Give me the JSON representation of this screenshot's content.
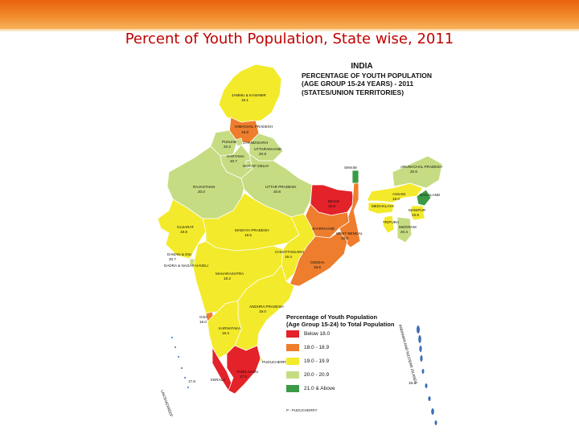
{
  "slide": {
    "title": "Percent of Youth Population, State wise, 2011"
  },
  "map": {
    "title_lines": [
      "INDIA",
      "PERCENTAGE OF YOUTH POPULATION",
      "(AGE GROUP 15-24 YEARS) - 2011",
      "(STATES/UNION TERRITORIES)"
    ],
    "regions": [
      {
        "name": "JAMMU & KASHMIR",
        "value": "19.1",
        "category": "19.0 - 19.9"
      },
      {
        "name": "HIMACHAL PRADESH",
        "value": "18.8",
        "category": "18.0 - 18.9"
      },
      {
        "name": "PUNJAB",
        "value": "20.2",
        "category": "20.0 - 20.9"
      },
      {
        "name": "CHANDIGARH",
        "value": "",
        "category": "20.0 - 20.9"
      },
      {
        "name": "UTTARAKHAND",
        "value": "20.9",
        "category": "20.0 - 20.9"
      },
      {
        "name": "HARYANA",
        "value": "20.7",
        "category": "20.0 - 20.9"
      },
      {
        "name": "NCT OF DELHI",
        "value": "",
        "category": "20.0 - 20.9"
      },
      {
        "name": "RAJASTHAN",
        "value": "20.0",
        "category": "20.0 - 20.9"
      },
      {
        "name": "UTTAR PRADESH",
        "value": "20.8",
        "category": "20.0 - 20.9"
      },
      {
        "name": "BIHAR",
        "value": "16.8",
        "category": "Below 18.0"
      },
      {
        "name": "SIKKIM",
        "value": "",
        "category": "21.0 & Above"
      },
      {
        "name": "ARUNACHAL PRADESH",
        "value": "20.6",
        "category": "20.0 - 20.9"
      },
      {
        "name": "NAGALAND",
        "value": "",
        "category": "21.0 & Above"
      },
      {
        "name": "ASSAM",
        "value": "19.0",
        "category": "19.0 - 19.9"
      },
      {
        "name": "MEGHALAYA",
        "value": "",
        "category": "19.0 - 19.9"
      },
      {
        "name": "MANIPUR",
        "value": "19.8",
        "category": "19.0 - 19.9"
      },
      {
        "name": "TRIPURA",
        "value": "",
        "category": "19.0 - 19.9"
      },
      {
        "name": "MIZORAM",
        "value": "20.4",
        "category": "20.0 - 20.9"
      },
      {
        "name": "GUJARAT",
        "value": "19.8",
        "category": "19.0 - 19.9"
      },
      {
        "name": "MADHYA PRADESH",
        "value": "19.5",
        "category": "19.0 - 19.9"
      },
      {
        "name": "JHARKHAND",
        "value": "",
        "category": "18.0 - 18.9"
      },
      {
        "name": "WEST BENGAL",
        "value": "18.0",
        "category": "18.0 - 18.9"
      },
      {
        "name": "CHHATTISGARH",
        "value": "19.4",
        "category": "19.0 - 19.9"
      },
      {
        "name": "ODISHA",
        "value": "18.6",
        "category": "18.0 - 18.9"
      },
      {
        "name": "DAMAN & DIU",
        "value": "20.7",
        "category": "20.0 - 20.9"
      },
      {
        "name": "DADRA & NAGAR HAVELI",
        "value": "",
        "category": "20.0 - 20.9"
      },
      {
        "name": "MAHARASHTRA",
        "value": "19.2",
        "category": "19.0 - 19.9"
      },
      {
        "name": "ANDHRA PRADESH",
        "value": "19.0",
        "category": "19.0 - 19.9"
      },
      {
        "name": "GOA",
        "value": "18.0",
        "category": "18.0 - 18.9"
      },
      {
        "name": "KARNATAKA",
        "value": "19.4",
        "category": "19.0 - 19.9"
      },
      {
        "name": "PUDUCHERRY",
        "value": "",
        "category": "19.0 - 19.9"
      },
      {
        "name": "TAMIL NADU",
        "value": "17.5",
        "category": "Below 18.0"
      },
      {
        "name": "KERALA",
        "value": "",
        "category": "Below 18.0"
      },
      {
        "name": "LAKSHADWEEP",
        "value": "17.8",
        "category": "Below 18.0"
      },
      {
        "name": "ANDAMAN AND NICOBAR ISLANDS",
        "value": "18.4",
        "category": "18.0 - 18.9"
      }
    ]
  },
  "legend": {
    "title_lines": [
      "Percentage of Youth Population",
      "(Age Group 15-24) to Total Population"
    ],
    "items": [
      {
        "label": "Below 18.0",
        "color": "#e32229"
      },
      {
        "label": "18.0 - 18.9",
        "color": "#ee7d2d"
      },
      {
        "label": "19.0 - 19.9",
        "color": "#f3ea2b"
      },
      {
        "label": "20.0 - 20.9",
        "color": "#c6dc82"
      },
      {
        "label": "21.0 & Above",
        "color": "#3a9a45"
      }
    ],
    "note": "P - PUDUCHERRY"
  }
}
